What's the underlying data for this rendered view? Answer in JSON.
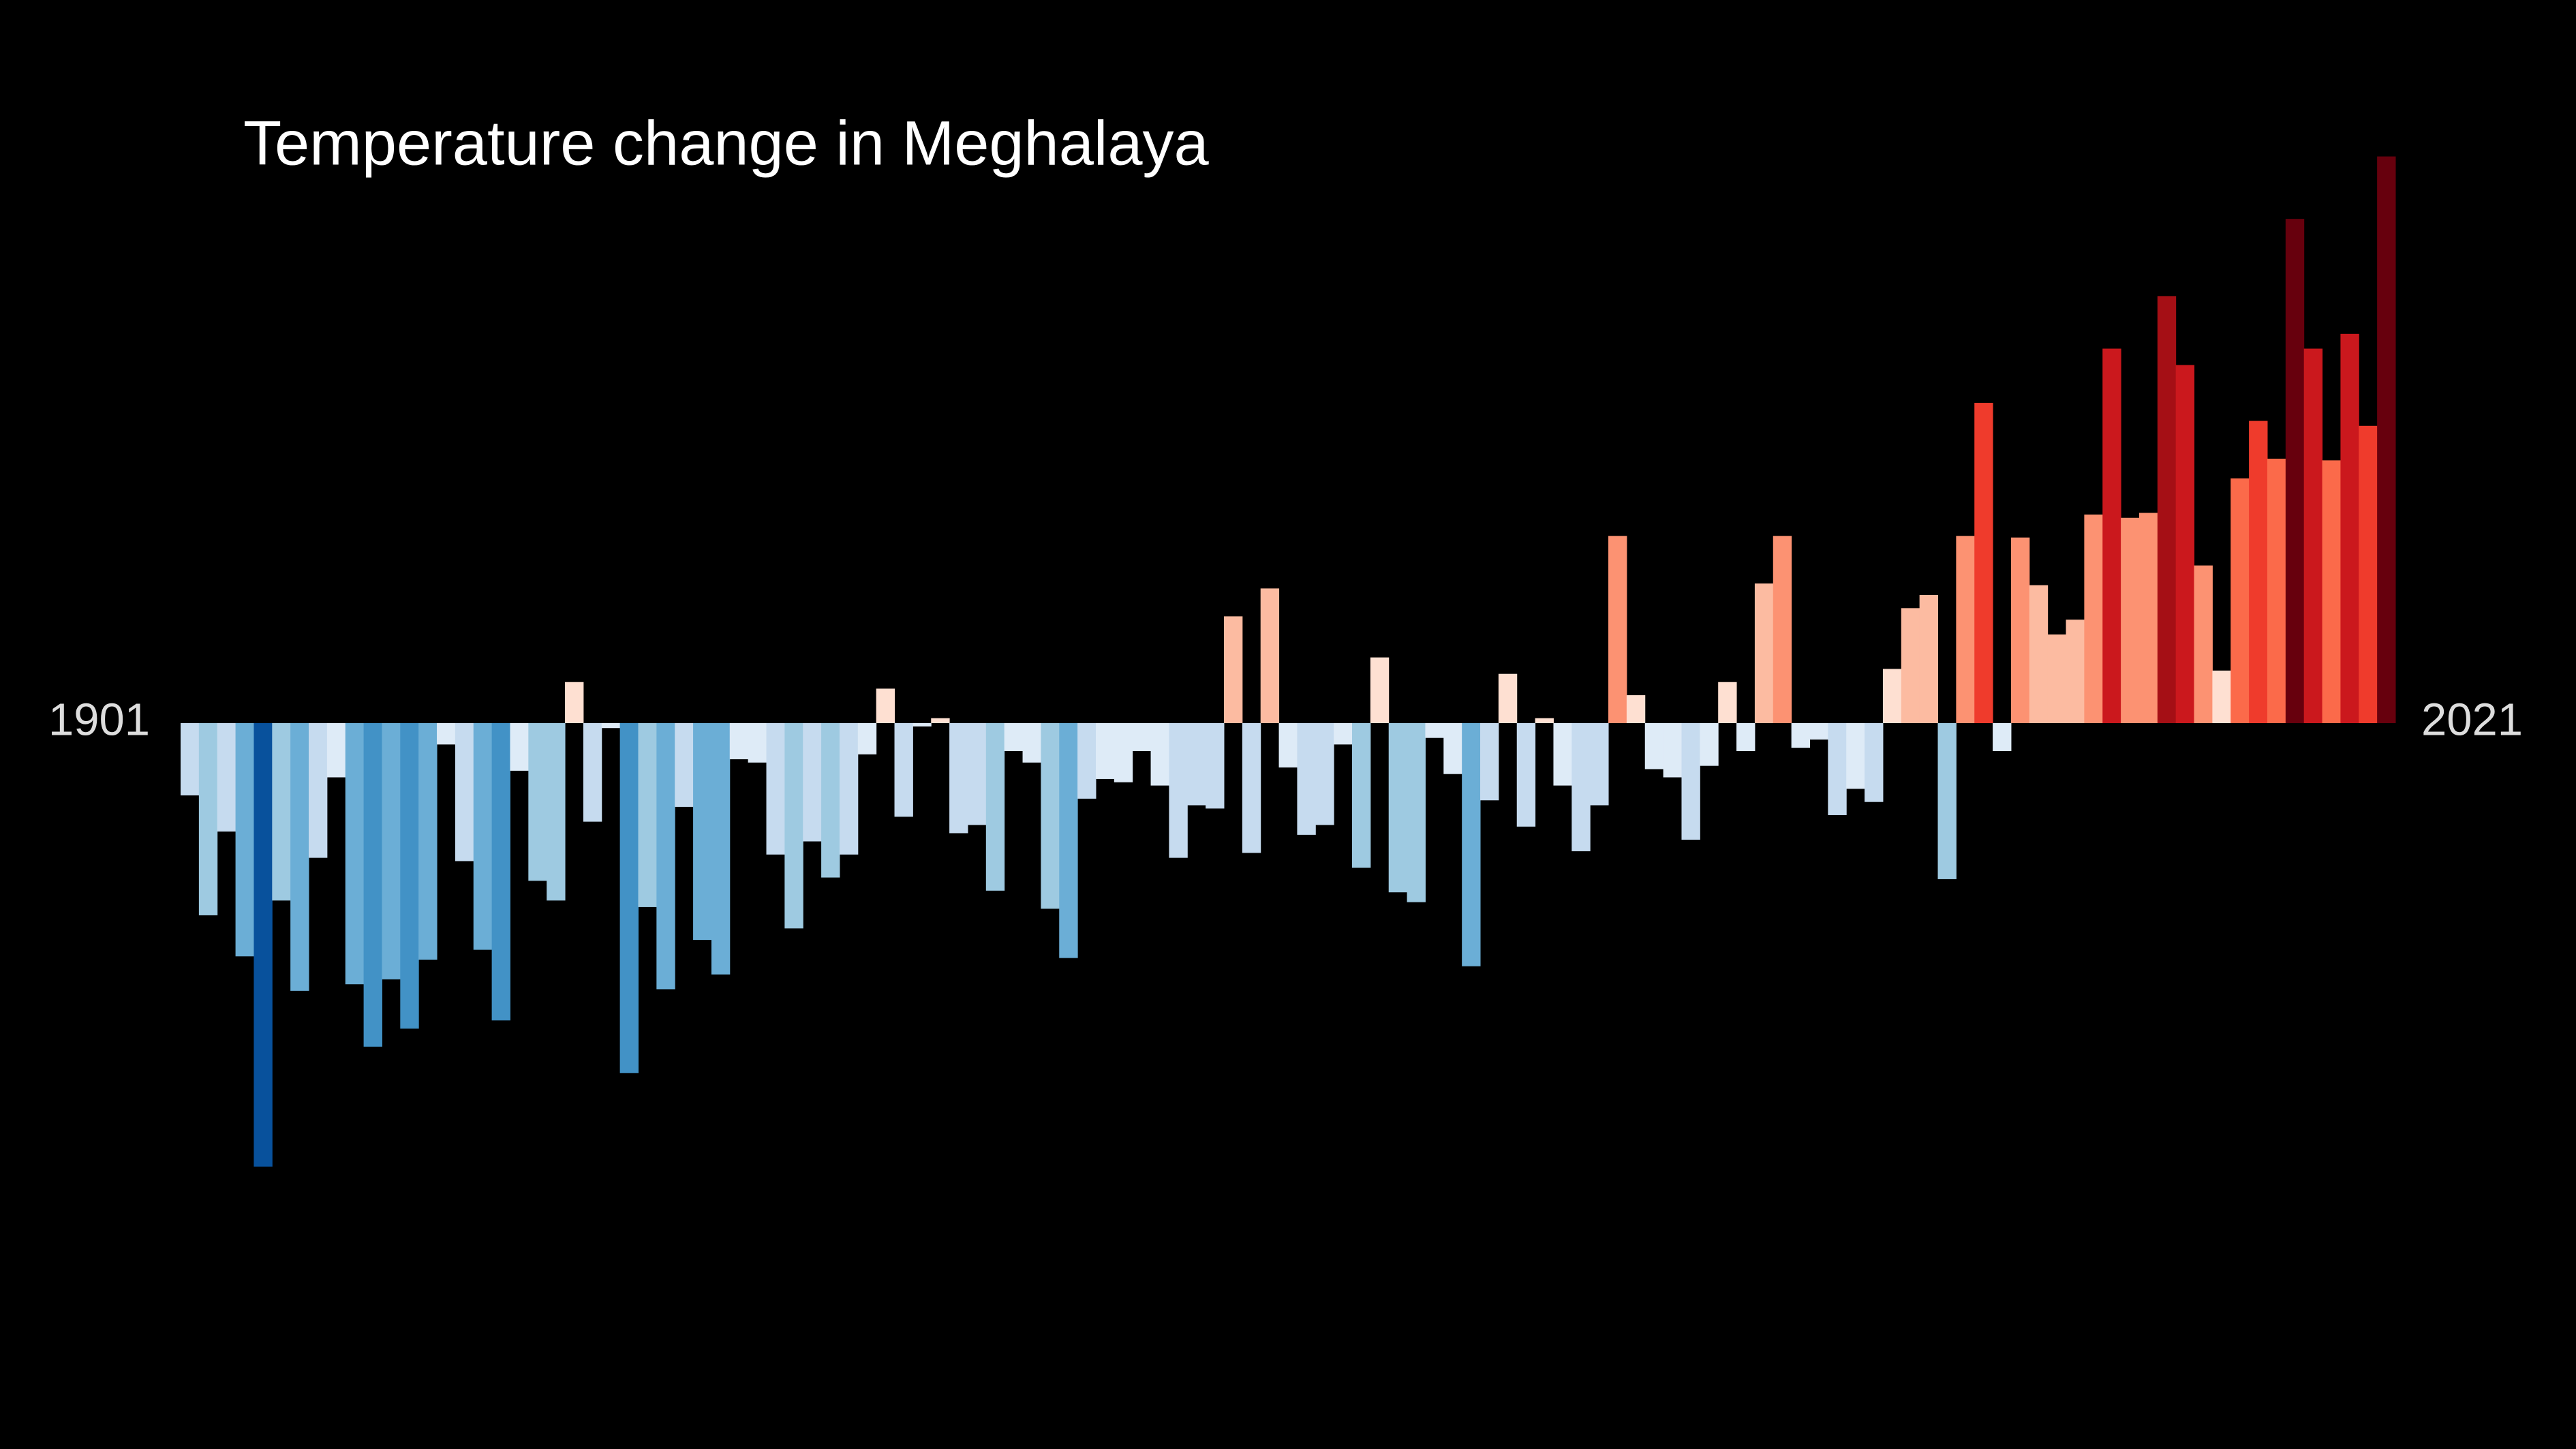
{
  "chart_data": {
    "type": "bar",
    "title": "Temperature change in Meghalaya",
    "x_labels": [
      "1901",
      "2021"
    ],
    "values": [
      -0.44,
      -1.17,
      -0.66,
      -1.42,
      -2.7,
      -1.08,
      -1.63,
      -0.82,
      -0.33,
      -1.59,
      -1.97,
      -1.56,
      -1.86,
      -1.44,
      -0.13,
      -0.84,
      -1.38,
      -1.81,
      -0.29,
      -0.96,
      -1.08,
      0.25,
      -0.6,
      -0.03,
      -2.13,
      -1.12,
      -1.62,
      -0.51,
      -1.32,
      -1.53,
      -0.22,
      -0.24,
      -0.8,
      -1.25,
      -0.72,
      -0.94,
      -0.8,
      -0.19,
      0.21,
      -0.57,
      -0.02,
      0.03,
      -0.67,
      -0.62,
      -1.02,
      -0.17,
      -0.24,
      -1.13,
      -1.43,
      -0.46,
      -0.34,
      -0.36,
      -0.17,
      -0.38,
      -0.82,
      -0.5,
      -0.52,
      0.65,
      -0.79,
      0.82,
      -0.27,
      -0.68,
      -0.62,
      -0.13,
      -0.88,
      0.4,
      -1.03,
      -1.09,
      -0.09,
      -0.31,
      -1.48,
      -0.47,
      0.3,
      -0.63,
      0.03,
      -0.38,
      -0.78,
      -0.5,
      1.14,
      0.17,
      -0.28,
      -0.33,
      -0.71,
      -0.26,
      0.25,
      -0.17,
      0.85,
      1.14,
      -0.15,
      -0.1,
      -0.56,
      -0.4,
      -0.48,
      0.33,
      0.7,
      0.78,
      -0.95,
      1.14,
      1.95,
      -0.17,
      1.13,
      0.84,
      0.54,
      0.63,
      1.27,
      2.28,
      1.25,
      1.28,
      2.6,
      2.18,
      0.96,
      0.32,
      1.49,
      1.84,
      1.61,
      3.07,
      2.28,
      1.6,
      2.37,
      1.81,
      3.45
    ],
    "colormap": [
      "#08306b",
      "#08519c",
      "#2171b5",
      "#4292c6",
      "#6baed6",
      "#9ecae1",
      "#c6dbef",
      "#deebf7",
      "#fee0d2",
      "#fcbba1",
      "#fc9272",
      "#fb6a4a",
      "#ef3b2c",
      "#cb181d",
      "#a50f15",
      "#67000d"
    ]
  }
}
